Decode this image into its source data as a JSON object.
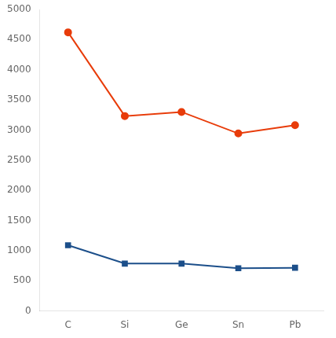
{
  "chart_data": {
    "type": "line",
    "categories": [
      "C",
      "Si",
      "Ge",
      "Sn",
      "Pb"
    ],
    "series": [
      {
        "color": "#1c4f8a",
        "marker": "square",
        "values": [
          1090,
          786,
          786,
          709,
          716
        ]
      },
      {
        "color": "#e83c0a",
        "marker": "circle",
        "values": [
          4620,
          3232,
          3300,
          2943,
          3081
        ]
      }
    ],
    "ylim": [
      0,
      5000
    ],
    "yticks": [
      0,
      500,
      1000,
      1500,
      2000,
      2500,
      3000,
      3500,
      4000,
      4500,
      5000
    ],
    "grid": false
  }
}
